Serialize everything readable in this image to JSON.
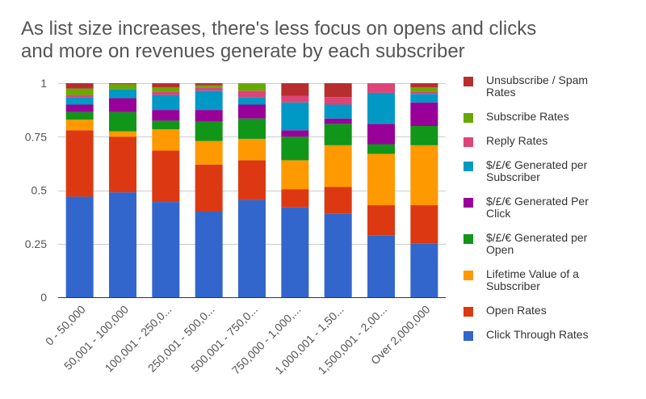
{
  "chart_data": {
    "type": "bar",
    "stacked": true,
    "title_lines": [
      "As list size increases, there's less focus on opens and clicks",
      "and more on revenues generate by each subscriber"
    ],
    "xlabel": "",
    "ylabel": "",
    "ylim": [
      0,
      1
    ],
    "y_ticks": [
      0,
      0.25,
      0.5,
      0.75,
      1
    ],
    "y_tick_labels": [
      "0",
      "0.25",
      "0.5",
      "0.75",
      "1"
    ],
    "grid": true,
    "legend_position": "right",
    "categories": [
      "0 - 50,000",
      "50,001 - 100,000",
      "100,001 - 250,0...",
      "250,001 - 500,0...",
      "500,001 - 750,0...",
      "750,000 - 1,000,...",
      "1,000,001 - 1,50...",
      "1,500,001 - 2,00...",
      "Over 2,000,000"
    ],
    "series": [
      {
        "name": "Click Through Rates",
        "color": "#3366cc",
        "values": [
          0.47,
          0.49,
          0.445,
          0.4,
          0.455,
          0.42,
          0.39,
          0.29,
          0.25
        ]
      },
      {
        "name": "Open Rates",
        "color": "#dc3912",
        "values": [
          0.31,
          0.26,
          0.24,
          0.22,
          0.185,
          0.085,
          0.125,
          0.14,
          0.18
        ]
      },
      {
        "name": "Lifetime Value of a Subscriber",
        "color": "#ff9900",
        "values": [
          0.05,
          0.025,
          0.1,
          0.11,
          0.1,
          0.135,
          0.195,
          0.24,
          0.28
        ]
      },
      {
        "name": "$/£/€ Generated per Open",
        "color": "#109618",
        "values": [
          0.035,
          0.09,
          0.04,
          0.09,
          0.095,
          0.11,
          0.1,
          0.045,
          0.09
        ]
      },
      {
        "name": "$/£/€ Generated Per Click",
        "color": "#990099",
        "values": [
          0.035,
          0.065,
          0.05,
          0.055,
          0.065,
          0.03,
          0.025,
          0.095,
          0.11
        ]
      },
      {
        "name": "$/£/€ Generated per Subscriber",
        "color": "#0099c6",
        "values": [
          0.035,
          0.04,
          0.07,
          0.09,
          0.035,
          0.13,
          0.065,
          0.145,
          0.04
        ]
      },
      {
        "name": "Reply Rates",
        "color": "#dd4477",
        "values": [
          0.01,
          0.0,
          0.015,
          0.015,
          0.03,
          0.03,
          0.035,
          0.045,
          0.01
        ]
      },
      {
        "name": "Subscribe Rates",
        "color": "#66aa00",
        "values": [
          0.03,
          0.025,
          0.02,
          0.01,
          0.035,
          0.0,
          0.0,
          0.0,
          0.02
        ]
      },
      {
        "name": "Unsubscribe / Spam Rates",
        "color": "#b82e2e",
        "values": [
          0.025,
          0.005,
          0.02,
          0.01,
          0.0,
          0.06,
          0.065,
          0.0,
          0.02
        ]
      }
    ],
    "legend_order": [
      "Unsubscribe / Spam Rates",
      "Subscribe Rates",
      "Reply Rates",
      "$/£/€ Generated per Subscriber",
      "$/£/€ Generated Per Click",
      "$/£/€ Generated per Open",
      "Lifetime Value of a Subscriber",
      "Open Rates",
      "Click Through Rates"
    ],
    "legend_labels": {
      "Unsubscribe / Spam Rates": [
        "Unsubscribe / Spam",
        "Rates"
      ],
      "Subscribe Rates": [
        "Subscribe Rates"
      ],
      "Reply Rates": [
        "Reply Rates"
      ],
      "$/£/€ Generated per Subscriber": [
        "$/£/€ Generated per",
        "Subscriber"
      ],
      "$/£/€ Generated Per Click": [
        "$/£/€ Generated Per",
        "Click"
      ],
      "$/£/€ Generated per Open": [
        "$/£/€ Generated per",
        "Open"
      ],
      "Lifetime Value of a Subscriber": [
        "Lifetime Value of a",
        "Subscriber"
      ],
      "Open Rates": [
        "Open Rates"
      ],
      "Click Through Rates": [
        "Click Through Rates"
      ]
    }
  }
}
